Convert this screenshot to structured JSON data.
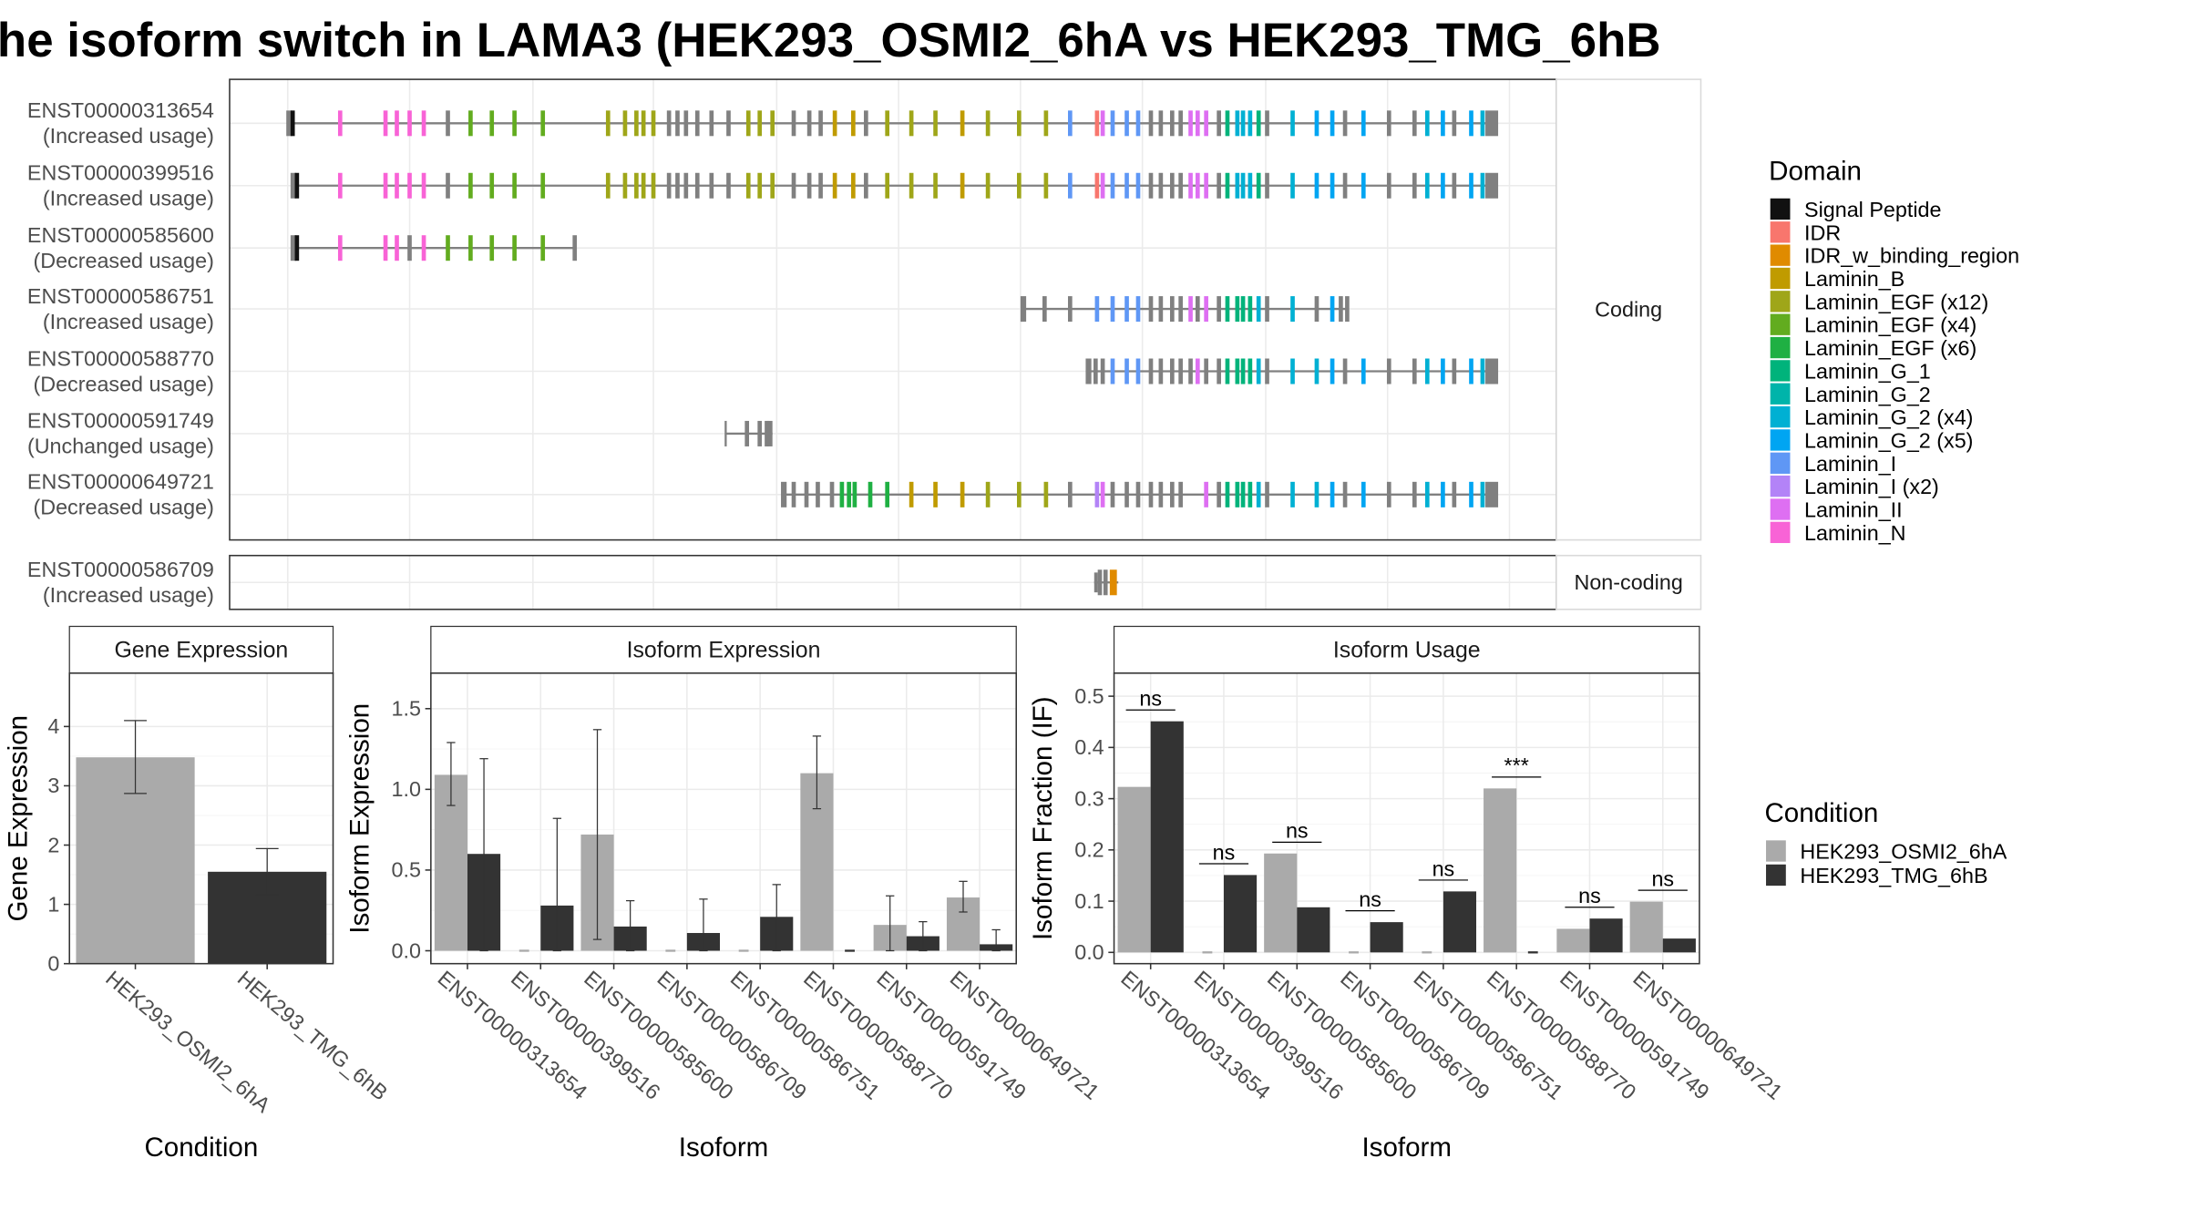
{
  "figure": {
    "title": "he isoform switch in LAMA3 (HEK293_OSMI2_6hA vs HEK293_TMG_6hB"
  },
  "colors": {
    "cond_a": "#aaaaaa",
    "cond_b": "#333333",
    "backbone": "#808080",
    "domains": {
      "Signal Peptide": "#111111",
      "IDR": "#f8766d",
      "IDR_w_binding_region": "#e08b00",
      "Laminin_B": "#c09b00",
      "Laminin_EGF (x12)": "#9fa619",
      "Laminin_EGF (x4)": "#62ac1f",
      "Laminin_EGF (x6)": "#1fb043",
      "Laminin_G_1": "#00b37b",
      "Laminin_G_2": "#00b4aa",
      "Laminin_G_2 (x4)": "#00b0d3",
      "Laminin_G_2 (x5)": "#00a5f2",
      "Laminin_I": "#5f97f5",
      "Laminin_I (x2)": "#b383f7",
      "Laminin_II": "#de6ff2",
      "Laminin_N": "#f863d6"
    }
  },
  "structure": {
    "strip_coding": "Coding",
    "strip_noncoding": "Non-coding",
    "transcripts": [
      {
        "id": "ENST00000313654",
        "usage": "(Increased usage)",
        "group": "coding",
        "start": 203,
        "end": 1056,
        "profile": "full"
      },
      {
        "id": "ENST00000399516",
        "usage": "(Increased usage)",
        "group": "coding",
        "start": 206,
        "end": 1056,
        "profile": "full"
      },
      {
        "id": "ENST00000585600",
        "usage": "(Decreased usage)",
        "group": "coding",
        "start": 206,
        "end": 406,
        "profile": "short5"
      },
      {
        "id": "ENST00000586751",
        "usage": "(Increased usage)",
        "group": "coding",
        "start": 721,
        "end": 951,
        "profile": "mid"
      },
      {
        "id": "ENST00000588770",
        "usage": "(Decreased usage)",
        "group": "coding",
        "start": 767,
        "end": 1056,
        "profile": "long3"
      },
      {
        "id": "ENST00000591749",
        "usage": "(Unchanged usage)",
        "group": "coding",
        "start": 512,
        "end": 545,
        "profile": "tiny"
      },
      {
        "id": "ENST00000649721",
        "usage": "(Decreased usage)",
        "group": "coding",
        "start": 552,
        "end": 1056,
        "profile": "long"
      },
      {
        "id": "ENST00000586709",
        "usage": "(Increased usage)",
        "group": "noncoding",
        "start": 772,
        "end": 789,
        "profile": "nc"
      }
    ],
    "domain_legend_title": "Domain",
    "domain_legend": [
      "Signal Peptide",
      "IDR",
      "IDR_w_binding_region",
      "Laminin_B",
      "Laminin_EGF (x12)",
      "Laminin_EGF (x4)",
      "Laminin_EGF (x6)",
      "Laminin_G_1",
      "Laminin_G_2",
      "Laminin_G_2 (x4)",
      "Laminin_G_2 (x5)",
      "Laminin_I",
      "Laminin_I (x2)",
      "Laminin_II",
      "Laminin_N"
    ]
  },
  "condition_legend": {
    "title": "Condition",
    "items": [
      "HEK293_OSMI2_6hA",
      "HEK293_TMG_6hB"
    ]
  },
  "chart_data": [
    {
      "type": "bar",
      "title": "Gene Expression",
      "xlabel": "Condition",
      "ylabel": "Gene Expression",
      "categories": [
        "HEK293_OSMI2_6hA",
        "HEK293_TMG_6hB"
      ],
      "values": [
        3.48,
        1.55
      ],
      "error_low": [
        2.87,
        1.16
      ],
      "error_high": [
        4.1,
        1.94
      ],
      "ylim": [
        0,
        4.9
      ],
      "yticks": [
        0,
        1,
        2,
        3,
        4
      ]
    },
    {
      "type": "bar",
      "title": "Isoform Expression",
      "xlabel": "Isoform",
      "ylabel": "Isoform Expression",
      "categories": [
        "ENST00000313654",
        "ENST00000399516",
        "ENST00000585600",
        "ENST00000586709",
        "ENST00000586751",
        "ENST00000588770",
        "ENST00000591749",
        "ENST00000649721"
      ],
      "series": [
        {
          "name": "HEK293_OSMI2_6hA",
          "values": [
            1.09,
            0.0,
            0.72,
            0.0,
            0.0,
            1.1,
            0.16,
            0.33
          ],
          "error_low": [
            0.9,
            null,
            0.07,
            null,
            null,
            0.88,
            0.0,
            0.24
          ],
          "error_high": [
            1.29,
            null,
            1.37,
            null,
            null,
            1.33,
            0.34,
            0.43
          ]
        },
        {
          "name": "HEK293_TMG_6hB",
          "values": [
            0.6,
            0.28,
            0.15,
            0.11,
            0.21,
            0.0,
            0.09,
            0.04
          ],
          "error_low": [
            0.0,
            0.0,
            0.0,
            0.0,
            0.0,
            null,
            0.0,
            0.0
          ],
          "error_high": [
            1.19,
            0.82,
            0.31,
            0.32,
            0.41,
            null,
            0.18,
            0.13
          ]
        }
      ],
      "ylim": [
        -0.08,
        1.72
      ],
      "yticks": [
        0.0,
        0.5,
        1.0,
        1.5
      ],
      "ytick_labels": [
        "0.0",
        "0.5",
        "1.0",
        "1.5"
      ]
    },
    {
      "type": "bar",
      "title": "Isoform Usage",
      "xlabel": "Isoform",
      "ylabel": "Isoform Fraction (IF)",
      "categories": [
        "ENST00000313654",
        "ENST00000399516",
        "ENST00000585600",
        "ENST00000586709",
        "ENST00000586751",
        "ENST00000588770",
        "ENST00000591749",
        "ENST00000649721"
      ],
      "series": [
        {
          "name": "HEK293_OSMI2_6hA",
          "values": [
            0.323,
            0.0,
            0.193,
            0.0,
            0.0,
            0.32,
            0.046,
            0.099
          ]
        },
        {
          "name": "HEK293_TMG_6hB",
          "values": [
            0.451,
            0.151,
            0.088,
            0.059,
            0.119,
            0.0,
            0.066,
            0.027
          ]
        }
      ],
      "significance": [
        "ns",
        "ns",
        "ns",
        "ns",
        "ns",
        "***",
        "ns",
        "ns"
      ],
      "ylim": [
        -0.022,
        0.545
      ],
      "yticks": [
        0.0,
        0.1,
        0.2,
        0.3,
        0.4,
        0.5
      ],
      "ytick_labels": [
        "0.0",
        "0.1",
        "0.2",
        "0.3",
        "0.4",
        "0.5"
      ]
    }
  ]
}
